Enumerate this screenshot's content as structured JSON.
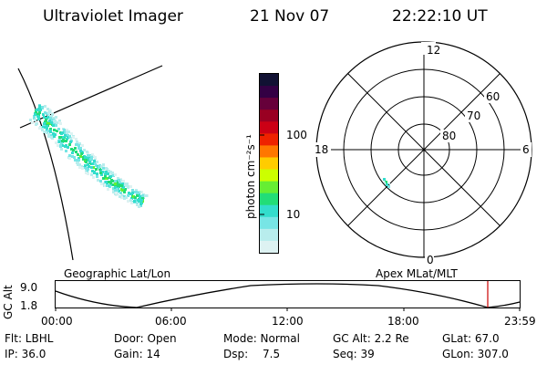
{
  "header": {
    "instrument": "Ultraviolet Imager",
    "date": "21 Nov 07",
    "time": "22:22:10 UT"
  },
  "colorbar": {
    "label": "photon cm⁻²s⁻¹",
    "ticks": [
      "100",
      "10"
    ],
    "colors": [
      "#111133",
      "#330044",
      "#66003a",
      "#990022",
      "#cc0015",
      "#ee2200",
      "#ff7700",
      "#ffcc00",
      "#ccff00",
      "#66ee33",
      "#22dd77",
      "#33ddcc",
      "#77e5e5",
      "#b8eded",
      "#ddf2f2"
    ]
  },
  "polar": {
    "mlt_labels": {
      "top": "12",
      "left": "18",
      "right": "6",
      "bottom": "0"
    },
    "lat_labels": [
      "60",
      "70",
      "80"
    ]
  },
  "altitude_plot": {
    "left_title": "Geographic Lat/Lon",
    "right_title": "Apex MLat/MLT",
    "ylabel": "GC Alt",
    "ytick_top": "9.0",
    "ytick_bottom": "1.8",
    "xticks": [
      "00:00",
      "06:00",
      "12:00",
      "18:00",
      "23:59"
    ],
    "marker_color": "#cc0000"
  },
  "status": {
    "flt": "Flt: LBHL",
    "ip": "IP: 36.0",
    "door": "Door: Open",
    "gain": "Gain: 14",
    "mode": "Mode: Normal",
    "dsp_label": "Dsp:",
    "dsp_value": "7.5",
    "gcalt": "GC Alt: 2.2 Re",
    "seq": "Seq: 39",
    "glat": "GLat:  67.0",
    "glon": "GLon: 307.0"
  }
}
